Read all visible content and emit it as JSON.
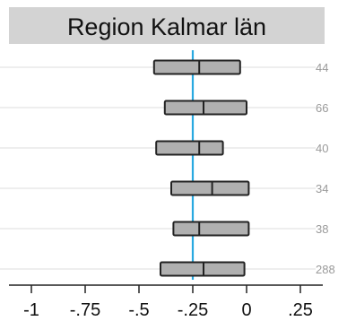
{
  "chart_data": {
    "type": "box",
    "title": "Region Kalmar län",
    "xlabel": "",
    "ylabel": "",
    "xlim": [
      -1.05,
      0.38
    ],
    "x_ticks": [
      -1,
      -0.75,
      -0.5,
      -0.25,
      0,
      0.25
    ],
    "x_tick_labels": [
      "-1",
      "-.75",
      "-.5",
      "-.25",
      "0",
      ".25"
    ],
    "reference_line": -0.25,
    "grid": "horizontal",
    "rows": [
      {
        "label": "44",
        "q1": -0.43,
        "median": -0.22,
        "q3": -0.03
      },
      {
        "label": "66",
        "q1": -0.38,
        "median": -0.2,
        "q3": 0.0
      },
      {
        "label": "40",
        "q1": -0.42,
        "median": -0.22,
        "q3": -0.11
      },
      {
        "label": "34",
        "q1": -0.35,
        "median": -0.16,
        "q3": 0.01
      },
      {
        "label": "38",
        "q1": -0.34,
        "median": -0.22,
        "q3": 0.01
      },
      {
        "label": "288",
        "q1": -0.4,
        "median": -0.2,
        "q3": -0.01
      }
    ],
    "colors": {
      "title_band": "#d3d3d3",
      "box_fill": "#b0b0b0",
      "box_stroke": "#222222",
      "reference_line": "#29a9e0",
      "grid": "#dddddd",
      "row_label": "#9a9a9a",
      "axis": "#222222"
    }
  }
}
